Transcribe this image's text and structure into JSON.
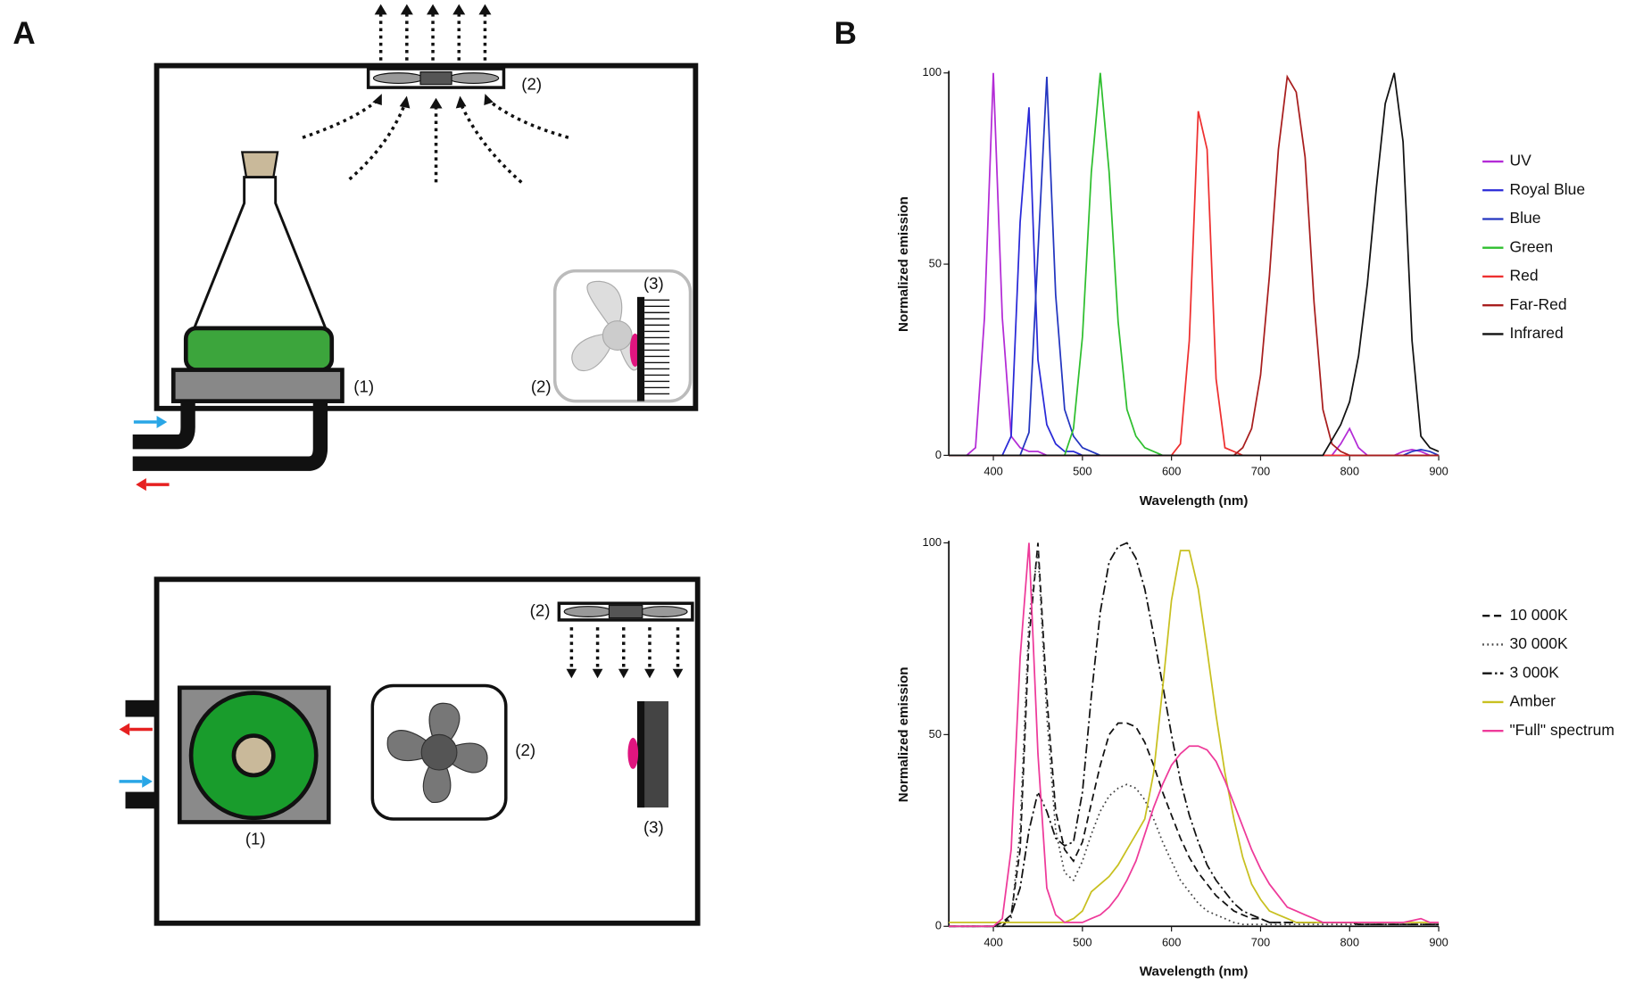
{
  "diagram": {
    "panel_labels": [
      "A",
      "B"
    ],
    "labels": [
      "(2)",
      "(1)",
      "(2)",
      "(3)",
      "(2)",
      "(2)",
      "(1)",
      "(3)"
    ]
  },
  "chart_data": [
    {
      "type": "line",
      "xlabel": "Wavelength (nm)",
      "ylabel": "Normalized emission",
      "x": [
        350,
        360,
        370,
        380,
        390,
        400,
        410,
        420,
        430,
        440,
        450,
        460,
        470,
        480,
        490,
        500,
        510,
        520,
        530,
        540,
        550,
        560,
        570,
        580,
        590,
        600,
        610,
        620,
        630,
        640,
        650,
        660,
        670,
        680,
        690,
        700,
        710,
        720,
        730,
        740,
        750,
        760,
        770,
        780,
        790,
        800,
        810,
        820,
        830,
        840,
        850,
        860,
        870,
        880,
        890,
        900
      ],
      "xlim": [
        350,
        900
      ],
      "xticks": [
        400,
        500,
        600,
        700,
        800,
        900
      ],
      "ylim": [
        0,
        100
      ],
      "yticks": [
        0,
        50,
        100
      ],
      "legend": "right",
      "series": [
        {
          "name": "UV",
          "color": "#b32bd6",
          "dash": "solid",
          "values": [
            0,
            0,
            0,
            2,
            36,
            100,
            36,
            5,
            2,
            1,
            1,
            0,
            0,
            0,
            0,
            0,
            0,
            0,
            0,
            0,
            0,
            0,
            0,
            0,
            0,
            0,
            0,
            0,
            0,
            0,
            0,
            0,
            0,
            0,
            0,
            0,
            0,
            0,
            0,
            0,
            0,
            0,
            0,
            0,
            3,
            7,
            2,
            0,
            0,
            0,
            0,
            1,
            1.5,
            1,
            0,
            0
          ]
        },
        {
          "name": "Royal Blue",
          "color": "#2a2ad8",
          "dash": "solid",
          "values": [
            0,
            0,
            0,
            0,
            0,
            0,
            0,
            5,
            61,
            91,
            25,
            8,
            3,
            1,
            1,
            0,
            0,
            0,
            0,
            0,
            0,
            0,
            0,
            0,
            0,
            0,
            0,
            0,
            0,
            0,
            0,
            0,
            0,
            0,
            0,
            0,
            0,
            0,
            0,
            0,
            0,
            0,
            0,
            0,
            0,
            0,
            0,
            0,
            0,
            0,
            0,
            0,
            0,
            0,
            0,
            0
          ]
        },
        {
          "name": "Blue",
          "color": "#2436c0",
          "dash": "solid",
          "values": [
            0,
            0,
            0,
            0,
            0,
            0,
            0,
            0,
            0,
            6,
            53,
            99,
            42,
            12,
            5,
            2,
            1,
            0,
            0,
            0,
            0,
            0,
            0,
            0,
            0,
            0,
            0,
            0,
            0,
            0,
            0,
            0,
            0,
            0,
            0,
            0,
            0,
            0,
            0,
            0,
            0,
            0,
            0,
            0,
            0,
            0,
            0,
            0,
            0,
            0,
            0,
            0,
            1,
            1.5,
            1,
            0
          ]
        },
        {
          "name": "Green",
          "color": "#2fbf2f",
          "dash": "solid",
          "values": [
            0,
            0,
            0,
            0,
            0,
            0,
            0,
            0,
            0,
            0,
            0,
            0,
            0,
            0,
            7,
            31,
            74,
            100,
            74,
            35,
            12,
            5,
            2,
            1,
            0,
            0,
            0,
            0,
            0,
            0,
            0,
            0,
            0,
            0,
            0,
            0,
            0,
            0,
            0,
            0,
            0,
            0,
            0,
            0,
            0,
            0,
            0,
            0,
            0,
            0,
            0,
            0,
            0,
            0,
            0,
            0
          ]
        },
        {
          "name": "Red",
          "color": "#ee3030",
          "dash": "solid",
          "values": [
            0,
            0,
            0,
            0,
            0,
            0,
            0,
            0,
            0,
            0,
            0,
            0,
            0,
            0,
            0,
            0,
            0,
            0,
            0,
            0,
            0,
            0,
            0,
            0,
            0,
            0,
            3,
            30,
            90,
            80,
            20,
            2,
            1,
            0,
            0,
            0,
            0,
            0,
            0,
            0,
            0,
            0,
            0,
            0,
            0,
            0,
            0,
            0,
            0,
            0,
            0,
            0,
            0,
            0,
            0,
            0
          ]
        },
        {
          "name": "Far-Red",
          "color": "#a81e1e",
          "dash": "solid",
          "values": [
            0,
            0,
            0,
            0,
            0,
            0,
            0,
            0,
            0,
            0,
            0,
            0,
            0,
            0,
            0,
            0,
            0,
            0,
            0,
            0,
            0,
            0,
            0,
            0,
            0,
            0,
            0,
            0,
            0,
            0,
            0,
            0,
            0,
            2,
            7,
            21,
            47,
            80,
            99,
            95,
            78,
            40,
            12,
            3,
            1,
            0,
            0,
            0,
            0,
            0,
            0,
            0,
            0,
            0,
            0,
            0
          ]
        },
        {
          "name": "Infrared",
          "color": "#111111",
          "dash": "solid",
          "values": [
            0,
            0,
            0,
            0,
            0,
            0,
            0,
            0,
            0,
            0,
            0,
            0,
            0,
            0,
            0,
            0,
            0,
            0,
            0,
            0,
            0,
            0,
            0,
            0,
            0,
            0,
            0,
            0,
            0,
            0,
            0,
            0,
            0,
            0,
            0,
            0,
            0,
            0,
            0,
            0,
            0,
            0,
            0,
            4,
            8,
            14,
            26,
            45,
            70,
            92,
            100,
            82,
            30,
            5,
            2,
            1
          ]
        }
      ]
    },
    {
      "type": "line",
      "xlabel": "Wavelength (nm)",
      "ylabel": "Normalized emission",
      "x": [
        350,
        360,
        370,
        380,
        390,
        400,
        410,
        420,
        430,
        440,
        450,
        460,
        470,
        480,
        490,
        500,
        510,
        520,
        530,
        540,
        550,
        560,
        570,
        580,
        590,
        600,
        610,
        620,
        630,
        640,
        650,
        660,
        670,
        680,
        690,
        700,
        710,
        720,
        730,
        740,
        750,
        760,
        770,
        780,
        790,
        800,
        810,
        820,
        830,
        840,
        850,
        860,
        870,
        880,
        890,
        900
      ],
      "xlim": [
        350,
        900
      ],
      "xticks": [
        400,
        500,
        600,
        700,
        800,
        900
      ],
      "ylim": [
        0,
        100
      ],
      "yticks": [
        0,
        50,
        100
      ],
      "legend": "right",
      "series": [
        {
          "name": "10 000K",
          "color": "#111111",
          "dash": "dashed",
          "values": [
            0,
            0,
            0,
            0,
            0,
            0,
            1,
            3,
            20,
            75,
            100,
            60,
            30,
            20,
            17,
            22,
            32,
            42,
            50,
            53,
            53,
            52,
            48,
            42,
            35,
            29,
            23,
            18,
            14,
            11,
            8,
            6,
            4,
            3,
            2,
            2,
            1,
            1,
            1,
            1,
            1,
            1,
            1,
            1,
            1,
            1,
            0.5,
            0.5,
            0.5,
            0.5,
            0.5,
            0.5,
            0.5,
            0.5,
            0.5,
            0.5
          ]
        },
        {
          "name": "30 000K",
          "color": "#444444",
          "dash": "dotted",
          "values": [
            0,
            0,
            0,
            0,
            0,
            0,
            0,
            2,
            25,
            80,
            98,
            55,
            25,
            14,
            12,
            17,
            24,
            30,
            34,
            36,
            37,
            36,
            33,
            28,
            22,
            17,
            12,
            9,
            6,
            4,
            3,
            2,
            1,
            0.5,
            0.5,
            0.5,
            0.5,
            0.5,
            0.5,
            0.5,
            0.5,
            0.5,
            0.5,
            0.5,
            0.5,
            0.5,
            0.5,
            0.5,
            0.5,
            0.5,
            0.5,
            0.5,
            0.5,
            0.5,
            0.5,
            0.5
          ]
        },
        {
          "name": "3 000K",
          "color": "#111111",
          "dash": "dashdot",
          "values": [
            0,
            0,
            0,
            0,
            0,
            0,
            0,
            3,
            10,
            25,
            35,
            30,
            23,
            21,
            22,
            35,
            60,
            82,
            95,
            99,
            100,
            96,
            88,
            76,
            63,
            50,
            38,
            29,
            22,
            16,
            12,
            9,
            6,
            4,
            3,
            2,
            1,
            1,
            1,
            1,
            1,
            1,
            1,
            1,
            1,
            1,
            0.5,
            0.5,
            0.5,
            0.5,
            0.5,
            0.5,
            0.5,
            0.5,
            0.5,
            0.5
          ]
        },
        {
          "name": "Amber",
          "color": "#c8c020",
          "dash": "solid",
          "values": [
            1,
            1,
            1,
            1,
            1,
            1,
            1,
            1,
            1,
            1,
            1,
            1,
            1,
            1,
            2,
            4,
            9,
            11,
            13,
            16,
            20,
            24,
            28,
            40,
            62,
            85,
            98,
            98,
            88,
            72,
            55,
            40,
            28,
            18,
            11,
            7,
            4,
            3,
            2,
            1,
            1,
            1,
            1,
            1,
            1,
            1,
            1,
            1,
            1,
            1,
            1,
            1,
            1,
            1,
            1,
            1
          ]
        },
        {
          "name": "\"Full\" spectrum",
          "color": "#ee3a9a",
          "dash": "solid",
          "values": [
            0,
            0,
            0,
            0,
            0,
            0,
            2,
            20,
            70,
            100,
            45,
            10,
            3,
            1,
            1,
            1,
            2,
            3,
            5,
            8,
            12,
            17,
            24,
            31,
            37,
            42,
            45,
            47,
            47,
            46,
            43,
            38,
            32,
            26,
            20,
            15,
            11,
            8,
            5,
            4,
            3,
            2,
            1,
            1,
            1,
            1,
            1,
            1,
            1,
            1,
            1,
            1,
            1.5,
            2,
            1,
            1
          ]
        }
      ]
    }
  ]
}
